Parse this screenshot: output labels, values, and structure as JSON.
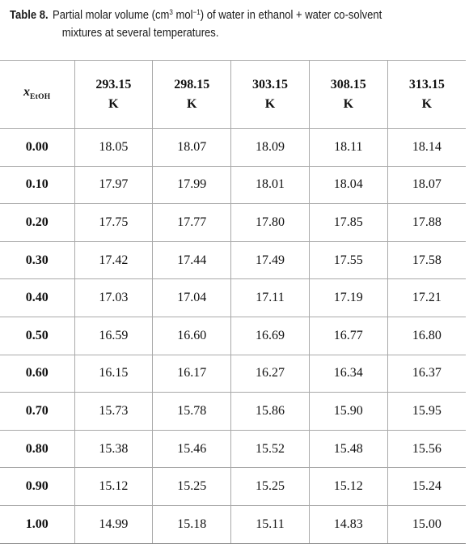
{
  "caption": {
    "label": "Table 8.",
    "text_1": "Partial molar volume (cm",
    "sup_1": "3",
    "text_2": " mol",
    "sup_2": "−1",
    "text_3": ") of water in ethanol + water co-solvent",
    "line_2": "mixtures at several temperatures."
  },
  "table": {
    "first_header": {
      "symbol": "x",
      "subscript": "EtOH"
    },
    "temps": [
      {
        "value": "293.15",
        "unit": "K"
      },
      {
        "value": "298.15",
        "unit": "K"
      },
      {
        "value": "303.15",
        "unit": "K"
      },
      {
        "value": "308.15",
        "unit": "K"
      },
      {
        "value": "313.15",
        "unit": "K"
      }
    ],
    "rows": [
      {
        "x": "0.00",
        "v": [
          "18.05",
          "18.07",
          "18.09",
          "18.11",
          "18.14"
        ]
      },
      {
        "x": "0.10",
        "v": [
          "17.97",
          "17.99",
          "18.01",
          "18.04",
          "18.07"
        ]
      },
      {
        "x": "0.20",
        "v": [
          "17.75",
          "17.77",
          "17.80",
          "17.85",
          "17.88"
        ]
      },
      {
        "x": "0.30",
        "v": [
          "17.42",
          "17.44",
          "17.49",
          "17.55",
          "17.58"
        ]
      },
      {
        "x": "0.40",
        "v": [
          "17.03",
          "17.04",
          "17.11",
          "17.19",
          "17.21"
        ]
      },
      {
        "x": "0.50",
        "v": [
          "16.59",
          "16.60",
          "16.69",
          "16.77",
          "16.80"
        ]
      },
      {
        "x": "0.60",
        "v": [
          "16.15",
          "16.17",
          "16.27",
          "16.34",
          "16.37"
        ]
      },
      {
        "x": "0.70",
        "v": [
          "15.73",
          "15.78",
          "15.86",
          "15.90",
          "15.95"
        ]
      },
      {
        "x": "0.80",
        "v": [
          "15.38",
          "15.46",
          "15.52",
          "15.48",
          "15.56"
        ]
      },
      {
        "x": "0.90",
        "v": [
          "15.12",
          "15.25",
          "15.25",
          "15.12",
          "15.24"
        ]
      },
      {
        "x": "1.00",
        "v": [
          "14.99",
          "15.18",
          "15.11",
          "14.83",
          "15.00"
        ]
      }
    ]
  }
}
